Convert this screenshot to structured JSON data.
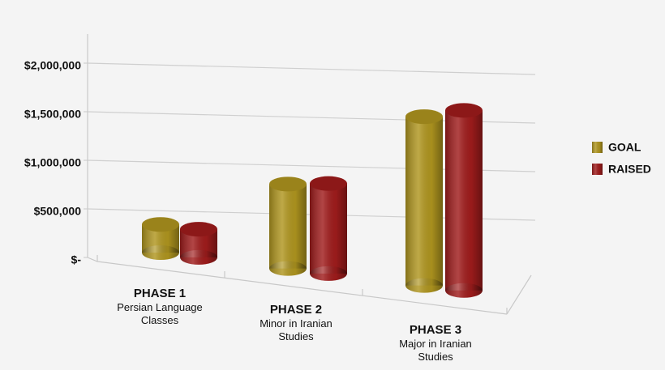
{
  "chart_data": {
    "type": "bar3d",
    "categories": [
      "PHASE 1",
      "PHASE 2",
      "PHASE 3"
    ],
    "category_descriptions": [
      "Persian Language Classes",
      "Minor in Iranian Studies",
      "Major in Iranian Studies"
    ],
    "series": [
      {
        "name": "GOAL",
        "color": "#b0961f",
        "values": [
          250000,
          750000,
          1500000
        ]
      },
      {
        "name": "RAISED",
        "color": "#a01c1c",
        "values": [
          250000,
          800000,
          1600000
        ]
      }
    ],
    "ylim": [
      0,
      2300000
    ],
    "yticks": [
      {
        "value": 0,
        "label": "$-"
      },
      {
        "value": 500000,
        "label": "$500,000"
      },
      {
        "value": 1000000,
        "label": "$1,000,000"
      },
      {
        "value": 1500000,
        "label": "$1,500,000"
      },
      {
        "value": 2000000,
        "label": "$2,000,000"
      }
    ],
    "grid": true,
    "legend": "right"
  }
}
